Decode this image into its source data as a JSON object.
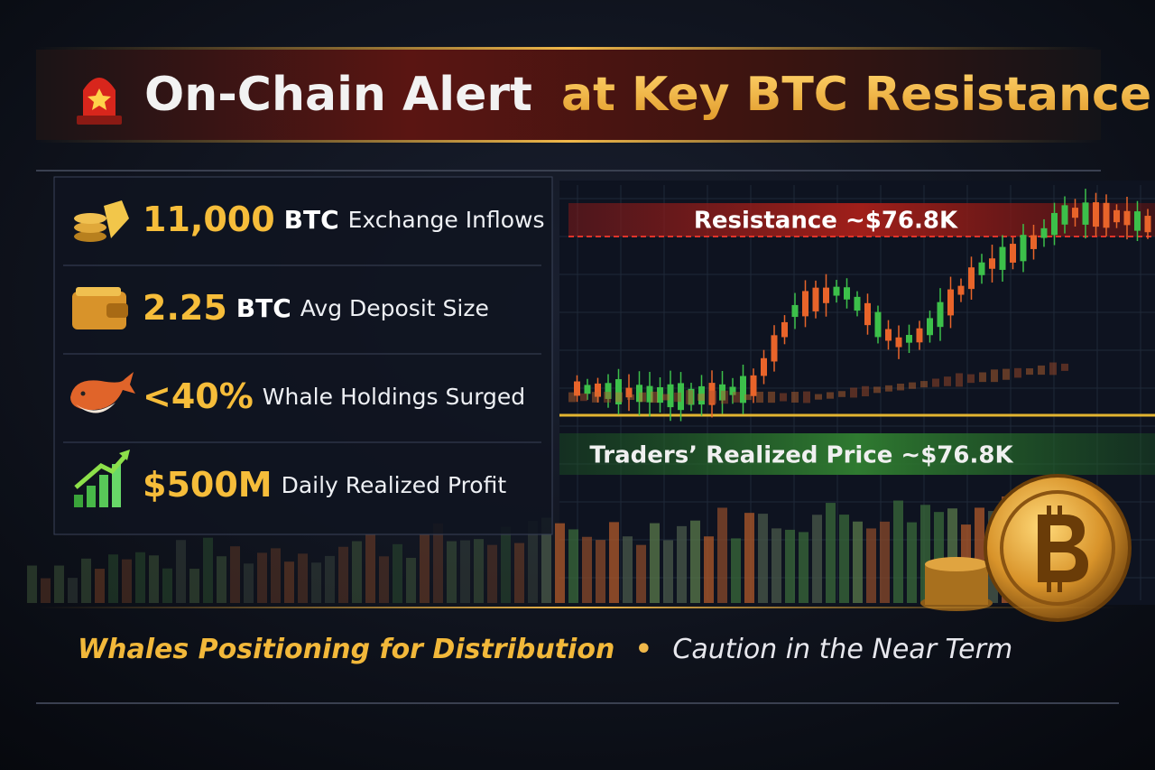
{
  "header": {
    "title_lead": "On-Chain Alert",
    "title_rest": "at Key BTC Resistance"
  },
  "stats": [
    {
      "value": "11,000",
      "unit": "BTC",
      "label": "Exchange Inflows"
    },
    {
      "value": "2.25",
      "unit": "BTC",
      "label": "Avg Deposit Size"
    },
    {
      "value": "<40%",
      "label": "Whale Holdings Surged"
    },
    {
      "value": "$500M",
      "label": "Daily Realized Profit"
    }
  ],
  "chart_labels": {
    "resistance": "Resistance ~$76.8K",
    "realized_price": "Traders’ Realized Price ~$76.8K"
  },
  "footer": {
    "lead": "Whales Positioning for Distribution",
    "separator": "•",
    "rest": "Caution in the Near Term"
  }
}
